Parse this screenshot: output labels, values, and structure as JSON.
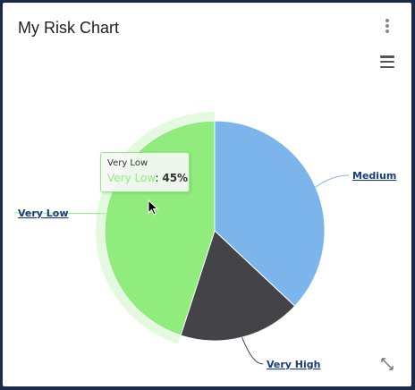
{
  "card": {
    "title": "My Risk Chart",
    "menu_icon": "kebab-menu-icon",
    "export_icon": "hamburger-menu-icon",
    "expand_icon": "expand-icon"
  },
  "chart_data": {
    "type": "pie",
    "title": "",
    "series": [
      {
        "name": "Medium",
        "value": 37,
        "color": "#7cb5ec"
      },
      {
        "name": "Very High",
        "value": 18,
        "color": "#434348"
      },
      {
        "name": "Very Low",
        "value": 45,
        "color": "#90ed7d",
        "hovered": true
      }
    ],
    "tooltip": {
      "header": "Very Low",
      "label": "Very Low",
      "value": "45%"
    }
  }
}
